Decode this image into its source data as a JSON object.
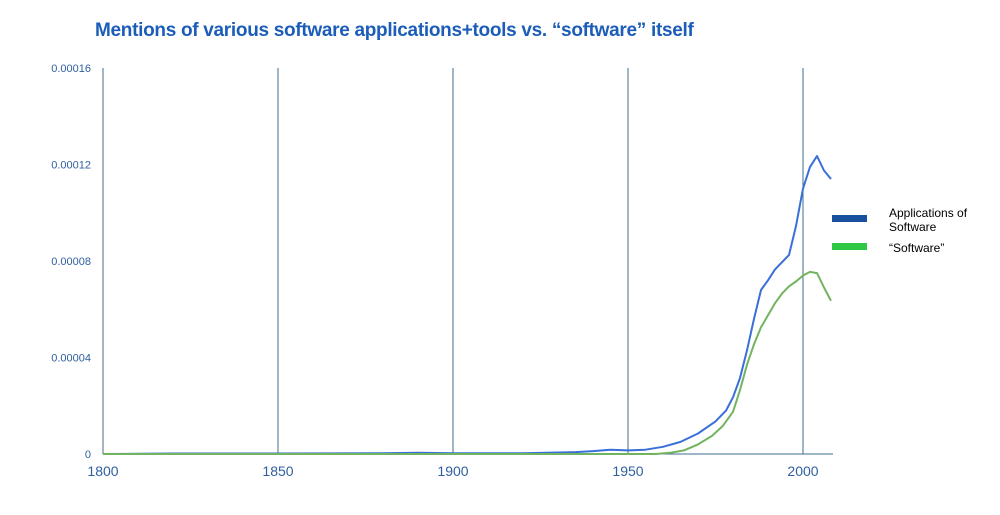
{
  "chart_data": {
    "type": "line",
    "title": "Mentions of various software applications+tools vs. “software” itself",
    "xlabel": "",
    "ylabel": "",
    "xlim": [
      1800,
      2008
    ],
    "ylim": [
      0,
      0.00016
    ],
    "x_ticks": [
      1800,
      1850,
      1900,
      1950,
      2000
    ],
    "x_tick_labels": [
      "1800",
      "1850",
      "1900",
      "1950",
      "2000"
    ],
    "y_ticks": [
      0,
      4e-05,
      8e-05,
      0.00012,
      0.00016
    ],
    "y_tick_labels": [
      "0",
      "0.00004",
      "0.00008",
      "0.00012",
      "0.00016"
    ],
    "vertical_gridlines": [
      1800,
      1850,
      1900,
      1950,
      2000
    ],
    "horizontal_gridlines": false,
    "legend_placement": "right",
    "series": [
      {
        "name": "Applications of Software",
        "color": "#3a6fd9",
        "legend_color": "#17519e",
        "points": [
          [
            1800,
            0
          ],
          [
            1820,
            2e-07
          ],
          [
            1850,
            2e-07
          ],
          [
            1880,
            3e-07
          ],
          [
            1890,
            5e-07
          ],
          [
            1900,
            3e-07
          ],
          [
            1920,
            3e-07
          ],
          [
            1935,
            8e-07
          ],
          [
            1940,
            1.2e-06
          ],
          [
            1945,
            1.8e-06
          ],
          [
            1950,
            1.5e-06
          ],
          [
            1955,
            1.8e-06
          ],
          [
            1960,
            3e-06
          ],
          [
            1965,
            5e-06
          ],
          [
            1970,
            8.5e-06
          ],
          [
            1975,
            1.35e-05
          ],
          [
            1978,
            1.8e-05
          ],
          [
            1980,
            2.35e-05
          ],
          [
            1982,
            3.15e-05
          ],
          [
            1984,
            4.3e-05
          ],
          [
            1986,
            5.6e-05
          ],
          [
            1988,
            6.8e-05
          ],
          [
            1990,
            7.2e-05
          ],
          [
            1992,
            7.65e-05
          ],
          [
            1994,
            7.95e-05
          ],
          [
            1996,
            8.25e-05
          ],
          [
            1998,
            9.45e-05
          ],
          [
            2000,
            0.00011
          ],
          [
            2002,
            0.000119
          ],
          [
            2004,
            0.0001235
          ],
          [
            2006,
            0.0001175
          ],
          [
            2008,
            0.000114
          ]
        ]
      },
      {
        "name": "“Software”",
        "color": "#72b35f",
        "legend_color": "#2ec746",
        "points": [
          [
            1800,
            0
          ],
          [
            1850,
            0
          ],
          [
            1900,
            0
          ],
          [
            1950,
            0
          ],
          [
            1958,
            0
          ],
          [
            1962,
            5e-07
          ],
          [
            1966,
            1.5e-06
          ],
          [
            1970,
            4e-06
          ],
          [
            1974,
            7.5e-06
          ],
          [
            1977,
            1.15e-05
          ],
          [
            1980,
            1.75e-05
          ],
          [
            1982,
            2.65e-05
          ],
          [
            1984,
            3.7e-05
          ],
          [
            1986,
            4.55e-05
          ],
          [
            1988,
            5.25e-05
          ],
          [
            1990,
            5.75e-05
          ],
          [
            1992,
            6.25e-05
          ],
          [
            1994,
            6.65e-05
          ],
          [
            1996,
            6.95e-05
          ],
          [
            1998,
            7.15e-05
          ],
          [
            2000,
            7.4e-05
          ],
          [
            2002,
            7.55e-05
          ],
          [
            2004,
            7.5e-05
          ],
          [
            2006,
            6.9e-05
          ],
          [
            2008,
            6.35e-05
          ]
        ]
      }
    ]
  },
  "legend": [
    {
      "label": "Applications of Software",
      "color": "#17519e"
    },
    {
      "label": "“Software”",
      "color": "#2ec746"
    }
  ]
}
